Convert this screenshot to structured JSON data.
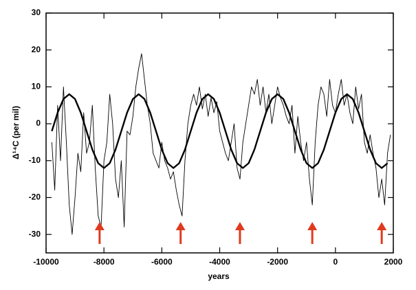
{
  "chart_data": {
    "type": "line",
    "xlabel": "years",
    "ylabel": "Δ¹⁴C (per mil)",
    "xlim": [
      -10000,
      2000
    ],
    "ylim": [
      -35,
      30
    ],
    "xticks": [
      -10000,
      -8000,
      -6000,
      -4000,
      -2000,
      0,
      2000
    ],
    "yticks": [
      -30,
      -20,
      -10,
      0,
      10,
      20,
      30
    ],
    "series": [
      {
        "color": "#000000",
        "x": [
          -9800,
          -9700,
          -9600,
          -9500,
          -9400,
          -9300,
          -9200,
          -9100,
          -9000,
          -8900,
          -8800,
          -8700,
          -8600,
          -8500,
          -8400,
          -8300,
          -8200,
          -8100,
          -8000,
          -7900,
          -7800,
          -7700,
          -7600,
          -7500,
          -7400,
          -7300,
          -7200,
          -7100,
          -7000,
          -6900,
          -6800,
          -6700,
          -6600,
          -6500,
          -6400,
          -6300,
          -6200,
          -6100,
          -6000,
          -5900,
          -5800,
          -5700,
          -5600,
          -5500,
          -5400,
          -5300,
          -5200,
          -5100,
          -5000,
          -4900,
          -4800,
          -4700,
          -4600,
          -4500,
          -4400,
          -4300,
          -4200,
          -4100,
          -4000,
          -3900,
          -3800,
          -3700,
          -3600,
          -3500,
          -3400,
          -3300,
          -3200,
          -3100,
          -3000,
          -2900,
          -2800,
          -2700,
          -2600,
          -2500,
          -2400,
          -2300,
          -2200,
          -2100,
          -2000,
          -1900,
          -1800,
          -1700,
          -1600,
          -1500,
          -1400,
          -1300,
          -1200,
          -1100,
          -1000,
          -900,
          -800,
          -700,
          -600,
          -500,
          -400,
          -300,
          -200,
          -100,
          0,
          100,
          200,
          300,
          400,
          500,
          600,
          700,
          800,
          900,
          1000,
          1100,
          1200,
          1300,
          1400,
          1500,
          1600,
          1700,
          1800,
          1900
        ],
        "values": [
          -5,
          -18,
          5,
          -10,
          10,
          -5,
          -22,
          -30,
          -20,
          -8,
          -13,
          3,
          -8,
          -5,
          5,
          -12,
          -25,
          -28,
          -10,
          -5,
          8,
          0,
          -15,
          -20,
          -10,
          -28,
          -2,
          -3,
          2,
          10,
          15,
          19,
          12,
          5,
          0,
          -8,
          -10,
          -12,
          -5,
          -10,
          -12,
          -15,
          -13,
          -18,
          -22,
          -25,
          -10,
          0,
          5,
          8,
          5,
          10,
          4,
          8,
          2,
          7,
          3,
          6,
          -2,
          -5,
          -8,
          -10,
          -5,
          0,
          -12,
          -15,
          -5,
          0,
          5,
          10,
          8,
          12,
          5,
          10,
          3,
          8,
          0,
          5,
          10,
          7,
          5,
          2,
          0,
          5,
          -8,
          2,
          -5,
          -10,
          -5,
          -15,
          -22,
          -5,
          5,
          10,
          8,
          2,
          12,
          5,
          3,
          8,
          12,
          5,
          8,
          3,
          0,
          10,
          4,
          8,
          -5,
          -8,
          -3,
          -8,
          -12,
          -20,
          -15,
          -22,
          -8,
          -3
        ]
      },
      {
        "color": "#000000",
        "x": [
          -9800,
          -9600,
          -9400,
          -9200,
          -9000,
          -8800,
          -8600,
          -8400,
          -8200,
          -8000,
          -7800,
          -7600,
          -7400,
          -7200,
          -7000,
          -6800,
          -6600,
          -6400,
          -6200,
          -6000,
          -5800,
          -5600,
          -5400,
          -5200,
          -5000,
          -4800,
          -4600,
          -4400,
          -4200,
          -4000,
          -3800,
          -3600,
          -3400,
          -3200,
          -3000,
          -2800,
          -2600,
          -2400,
          -2200,
          -2000,
          -1800,
          -1600,
          -1400,
          -1200,
          -1000,
          -800,
          -600,
          -400,
          -200,
          0,
          200,
          400,
          600,
          800,
          1000,
          1200,
          1400,
          1600,
          1800
        ],
        "values": [
          -2,
          3,
          6.7,
          8,
          6.7,
          3,
          -2,
          -7,
          -10.7,
          -12,
          -10.7,
          -7,
          -2,
          3,
          6.7,
          8,
          6.7,
          3,
          -2,
          -7,
          -10.7,
          -12,
          -10.7,
          -7,
          -2,
          3,
          6.7,
          8,
          6.7,
          3,
          -2,
          -7,
          -10.7,
          -12,
          -10.7,
          -7,
          -2,
          3,
          6.7,
          8,
          6.7,
          3,
          -2,
          -7,
          -10.7,
          -12,
          -10.7,
          -7,
          -2,
          3,
          6.7,
          8,
          6.7,
          3,
          -2,
          -7,
          -10.7,
          -12,
          -10.7
        ]
      }
    ],
    "arrows": {
      "color": "#e03a1e",
      "x": [
        -8150,
        -5350,
        -3300,
        -800,
        1600
      ],
      "y": [
        -27,
        -27,
        -27,
        -27,
        -27
      ]
    }
  }
}
